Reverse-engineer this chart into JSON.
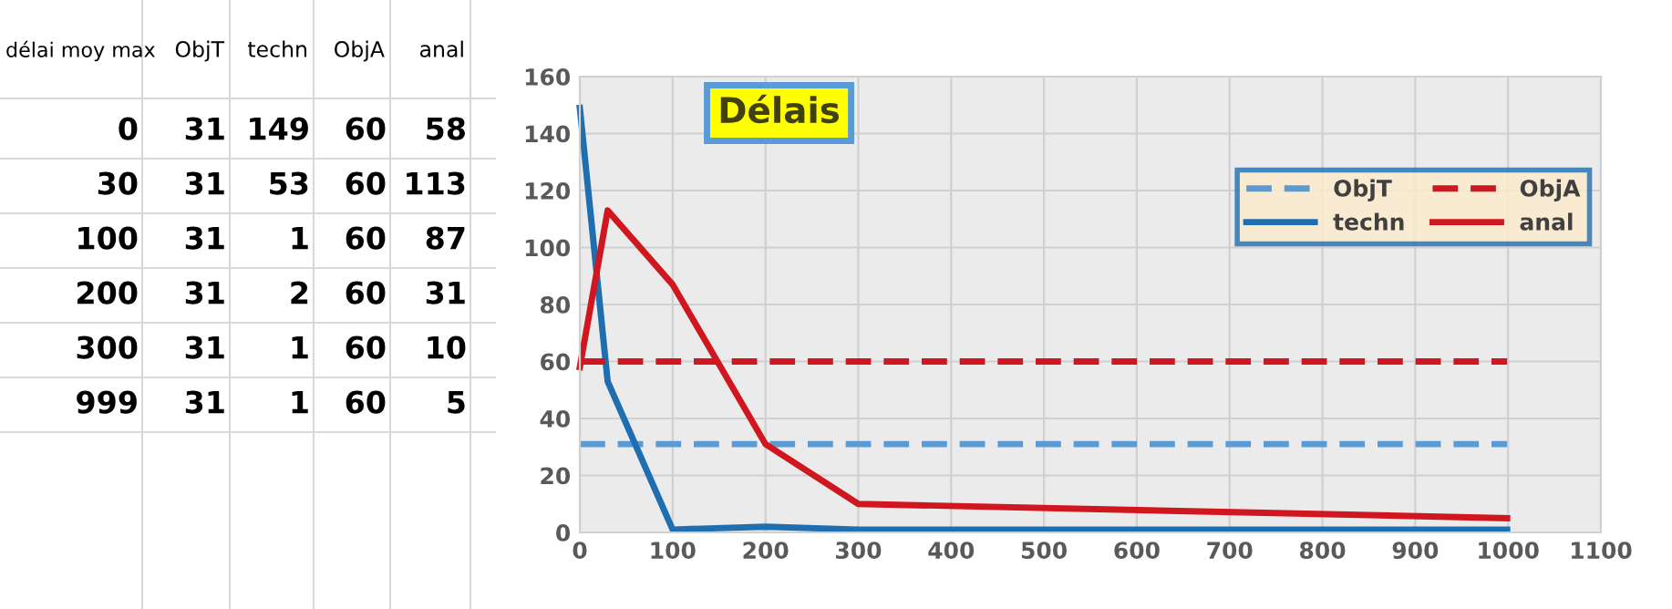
{
  "chart_data": [
    {
      "type": "other",
      "categories": [
        "délai moy max",
        "ObjT",
        "techn",
        "ObjA",
        "anal"
      ],
      "cell_labels": [
        [
          "0",
          "31",
          "149",
          "60",
          "58"
        ],
        [
          "30",
          "31",
          "53",
          "60",
          "113"
        ],
        [
          "100",
          "31",
          "1",
          "60",
          "87"
        ],
        [
          "200",
          "31",
          "2",
          "60",
          "31"
        ],
        [
          "300",
          "31",
          "1",
          "60",
          "10"
        ],
        [
          "999",
          "31",
          "1",
          "60",
          "5"
        ]
      ]
    },
    {
      "type": "line",
      "title": "Délais",
      "x": [
        0,
        30,
        100,
        200,
        300,
        999
      ],
      "series": [
        {
          "name": "ObjT",
          "color": "#5b9bd5",
          "line_style": "dashed",
          "values": [
            31,
            31,
            31,
            31,
            31,
            31
          ]
        },
        {
          "name": "techn",
          "color": "#1f6fb0",
          "line_style": "solid",
          "values": [
            149,
            53,
            1,
            2,
            1,
            1
          ]
        },
        {
          "name": "ObjA",
          "color": "#d0161e",
          "line_style": "dashed",
          "values": [
            60,
            60,
            60,
            60,
            60,
            60
          ]
        },
        {
          "name": "anal",
          "color": "#d0161e",
          "line_style": "solid",
          "values": [
            58,
            113,
            87,
            31,
            10,
            5
          ]
        }
      ],
      "xlim": [
        0,
        1100
      ],
      "xticks": [
        0,
        100,
        200,
        300,
        400,
        500,
        600,
        700,
        800,
        900,
        1000,
        1100
      ],
      "ylim": [
        0,
        160
      ],
      "yticks": [
        0,
        20,
        40,
        60,
        80,
        100,
        120,
        140,
        160
      ],
      "grid": true,
      "legend": "top right",
      "marker": "none"
    }
  ]
}
